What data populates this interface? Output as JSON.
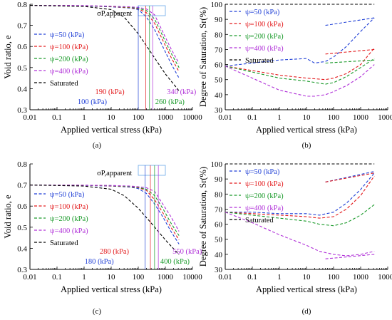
{
  "colors": {
    "psi50": "#1f3fd6",
    "psi100": "#e31a1c",
    "psi200": "#1a9a2a",
    "psi400": "#b030d8",
    "saturated": "#000000",
    "box": "#6aa8e8"
  },
  "chart_data": [
    {
      "panel": "a",
      "caption": "(a)",
      "type": "line",
      "xlabel": "Applied vertical stress (kPa)",
      "ylabel": "Void ratio, e",
      "xscale": "log",
      "xlim": [
        0.01,
        10000
      ],
      "ylim": [
        0.3,
        0.8
      ],
      "xticks": [
        "0.01",
        "0.1",
        "1",
        "10",
        "100",
        "1000",
        "10000"
      ],
      "yticks": [
        "0.3",
        "0.4",
        "0.5",
        "0.6",
        "0.7",
        "0.8"
      ],
      "legend_position": "middle-left",
      "annotation": "σP,apparent",
      "series": [
        {
          "name": "ψ=50 (kPa)",
          "color_key": "psi50",
          "x": [
            0.01,
            1,
            10,
            50,
            100,
            200,
            400,
            800,
            1600,
            3200
          ],
          "y": [
            0.795,
            0.792,
            0.788,
            0.782,
            0.775,
            0.74,
            0.68,
            0.6,
            0.52,
            0.45
          ]
        },
        {
          "name": "ψ=100 (kPa)",
          "color_key": "psi100",
          "x": [
            0.01,
            1,
            10,
            50,
            100,
            200,
            400,
            800,
            1600,
            3200
          ],
          "y": [
            0.795,
            0.793,
            0.789,
            0.784,
            0.778,
            0.76,
            0.71,
            0.63,
            0.55,
            0.48
          ]
        },
        {
          "name": "ψ=200 (kPa)",
          "color_key": "psi200",
          "x": [
            0.01,
            1,
            10,
            50,
            100,
            200,
            400,
            800,
            1600,
            3200
          ],
          "y": [
            0.795,
            0.793,
            0.79,
            0.786,
            0.781,
            0.77,
            0.73,
            0.65,
            0.57,
            0.5
          ]
        },
        {
          "name": "ψ=400 (kPa)",
          "color_key": "psi400",
          "x": [
            0.01,
            1,
            10,
            50,
            100,
            200,
            400,
            800,
            1600,
            3200
          ],
          "y": [
            0.795,
            0.794,
            0.791,
            0.788,
            0.785,
            0.778,
            0.75,
            0.67,
            0.59,
            0.52
          ]
        },
        {
          "name": "Saturated",
          "color_key": "saturated",
          "x": [
            0.01,
            1,
            10,
            30,
            100,
            300,
            1000,
            3200
          ],
          "y": [
            0.795,
            0.79,
            0.775,
            0.74,
            0.66,
            0.57,
            0.47,
            0.39
          ]
        }
      ],
      "stress_labels": [
        {
          "text": "100 (kPa)",
          "color_key": "psi50",
          "x": 100
        },
        {
          "text": "190 (kPa)",
          "color_key": "psi100",
          "x": 190
        },
        {
          "text": "260 (kPa)",
          "color_key": "psi200",
          "x": 260
        },
        {
          "text": "340 (kPa)",
          "color_key": "psi400",
          "x": 340
        }
      ]
    },
    {
      "panel": "b",
      "caption": "(b)",
      "type": "line",
      "xlabel": "Applied vertical stress (kPa)",
      "ylabel": "Degree of Saturation, Sr(%)",
      "xscale": "log",
      "xlim": [
        0.01,
        10000
      ],
      "ylim": [
        30,
        100
      ],
      "xticks": [
        "0.01",
        "0.1",
        "1",
        "10",
        "100",
        "1000",
        "10000"
      ],
      "yticks": [
        "30",
        "40",
        "50",
        "60",
        "70",
        "80",
        "90",
        "100"
      ],
      "legend_position": "top-left",
      "series": [
        {
          "name": "ψ=50 (kPa)",
          "color_key": "psi50",
          "x": [
            0.01,
            0.1,
            1,
            10,
            20,
            50,
            100,
            300,
            1000,
            3200
          ],
          "y": [
            59,
            61,
            63,
            64,
            61,
            62,
            65,
            72,
            82,
            91
          ]
        },
        {
          "name": "ψ=100 (kPa)",
          "color_key": "psi100",
          "x": [
            0.01,
            0.1,
            1,
            10,
            50,
            100,
            300,
            1000,
            3200
          ],
          "y": [
            59,
            56,
            53,
            51,
            50,
            51,
            54,
            60,
            71
          ]
        },
        {
          "name": "ψ=200 (kPa)",
          "color_key": "psi200",
          "x": [
            0.01,
            0.1,
            1,
            10,
            50,
            100,
            300,
            1000,
            3200
          ],
          "y": [
            59,
            55,
            51,
            49,
            47,
            48,
            52,
            58,
            64
          ]
        },
        {
          "name": "ψ=400 (kPa)",
          "color_key": "psi400",
          "x": [
            0.01,
            0.1,
            1,
            10,
            20,
            50,
            100,
            300,
            1000,
            3200
          ],
          "y": [
            59,
            51,
            43,
            39,
            39,
            40,
            42,
            46,
            52,
            60
          ]
        },
        {
          "name": "Saturated",
          "color_key": "saturated",
          "x": [
            0.01,
            3200
          ],
          "y": [
            100,
            100
          ]
        }
      ],
      "extra_series": [
        {
          "color_key": "psi50",
          "x": [
            50,
            3200
          ],
          "y": [
            86,
            91
          ]
        },
        {
          "color_key": "psi100",
          "x": [
            50,
            3200
          ],
          "y": [
            67,
            70
          ]
        },
        {
          "color_key": "psi200",
          "x": [
            50,
            3200
          ],
          "y": [
            61,
            63
          ]
        }
      ]
    },
    {
      "panel": "c",
      "caption": "(c)",
      "type": "line",
      "xlabel": "Applied vertical stress (kPa)",
      "ylabel": "Void ratio, e",
      "xscale": "log",
      "xlim": [
        0.01,
        10000
      ],
      "ylim": [
        0.3,
        0.8
      ],
      "xticks": [
        "0.01",
        "0.1",
        "1",
        "10",
        "100",
        "1000",
        "10000"
      ],
      "yticks": [
        "0.3",
        "0.4",
        "0.5",
        "0.6",
        "0.7",
        "0.8"
      ],
      "legend_position": "middle-left",
      "annotation": "σP,apparent",
      "series": [
        {
          "name": "ψ=50 (kPa)",
          "color_key": "psi50",
          "x": [
            0.01,
            1,
            10,
            50,
            100,
            200,
            400,
            800,
            1600,
            3200
          ],
          "y": [
            0.7,
            0.698,
            0.695,
            0.69,
            0.683,
            0.66,
            0.61,
            0.55,
            0.48,
            0.42
          ]
        },
        {
          "name": "ψ=100 (kPa)",
          "color_key": "psi100",
          "x": [
            0.01,
            1,
            10,
            50,
            100,
            200,
            400,
            800,
            1600,
            3200
          ],
          "y": [
            0.7,
            0.699,
            0.696,
            0.692,
            0.687,
            0.675,
            0.63,
            0.57,
            0.5,
            0.44
          ]
        },
        {
          "name": "ψ=200 (kPa)",
          "color_key": "psi200",
          "x": [
            0.01,
            1,
            10,
            50,
            100,
            200,
            400,
            800,
            1600,
            3200
          ],
          "y": [
            0.7,
            0.699,
            0.697,
            0.693,
            0.689,
            0.68,
            0.65,
            0.59,
            0.52,
            0.46
          ]
        },
        {
          "name": "ψ=400 (kPa)",
          "color_key": "psi400",
          "x": [
            0.01,
            1,
            10,
            50,
            100,
            200,
            400,
            800,
            1600,
            3200
          ],
          "y": [
            0.7,
            0.699,
            0.698,
            0.695,
            0.692,
            0.687,
            0.67,
            0.61,
            0.55,
            0.48
          ]
        },
        {
          "name": "Saturated",
          "color_key": "saturated",
          "x": [
            0.01,
            1,
            10,
            30,
            100,
            300,
            1000,
            3200
          ],
          "y": [
            0.7,
            0.695,
            0.68,
            0.65,
            0.59,
            0.52,
            0.44,
            0.37
          ]
        }
      ],
      "stress_labels": [
        {
          "text": "180 (kPa)",
          "color_key": "psi50",
          "x": 180
        },
        {
          "text": "280 (kPa)",
          "color_key": "psi100",
          "x": 280
        },
        {
          "text": "400 (kPa)",
          "color_key": "psi200",
          "x": 400
        },
        {
          "text": "550 (kPa)",
          "color_key": "psi400",
          "x": 550
        }
      ]
    },
    {
      "panel": "d",
      "caption": "(d)",
      "type": "line",
      "xlabel": "Applied vertical stress (kPa)",
      "ylabel": "Degree of Saturation, Sr(%)",
      "xscale": "log",
      "xlim": [
        0.01,
        10000
      ],
      "ylim": [
        30,
        100
      ],
      "xticks": [
        "0.01",
        "0.1",
        "1",
        "10",
        "100",
        "1000",
        "10000"
      ],
      "yticks": [
        "30",
        "40",
        "50",
        "60",
        "70",
        "80",
        "90",
        "100"
      ],
      "legend_position": "top-left",
      "series": [
        {
          "name": "ψ=50 (kPa)",
          "color_key": "psi50",
          "x": [
            0.01,
            0.1,
            1,
            10,
            30,
            100,
            300,
            1000,
            3200
          ],
          "y": [
            68,
            68,
            67,
            67,
            66,
            68,
            74,
            83,
            94
          ]
        },
        {
          "name": "ψ=100 (kPa)",
          "color_key": "psi100",
          "x": [
            0.01,
            0.1,
            1,
            10,
            30,
            100,
            300,
            1000,
            3200
          ],
          "y": [
            68,
            67,
            66,
            65,
            64,
            65,
            70,
            79,
            92
          ]
        },
        {
          "name": "ψ=200 (kPa)",
          "color_key": "psi200",
          "x": [
            0.01,
            0.1,
            1,
            10,
            30,
            100,
            300,
            1000,
            3200
          ],
          "y": [
            68,
            66,
            64,
            62,
            60,
            59,
            61,
            66,
            73
          ]
        },
        {
          "name": "ψ=400 (kPa)",
          "color_key": "psi400",
          "x": [
            0.01,
            0.1,
            1,
            10,
            30,
            100,
            300,
            1000,
            3200
          ],
          "y": [
            68,
            61,
            53,
            46,
            42,
            40,
            39,
            40,
            42
          ]
        },
        {
          "name": "Saturated",
          "color_key": "saturated",
          "x": [
            0.01,
            3200
          ],
          "y": [
            100,
            100
          ]
        }
      ],
      "extra_series": [
        {
          "color_key": "psi50",
          "x": [
            50,
            3200
          ],
          "y": [
            88,
            95
          ]
        },
        {
          "color_key": "psi100",
          "x": [
            50,
            3200
          ],
          "y": [
            88,
            94
          ]
        },
        {
          "color_key": "psi400",
          "x": [
            50,
            3200
          ],
          "y": [
            37,
            40
          ]
        }
      ]
    }
  ]
}
